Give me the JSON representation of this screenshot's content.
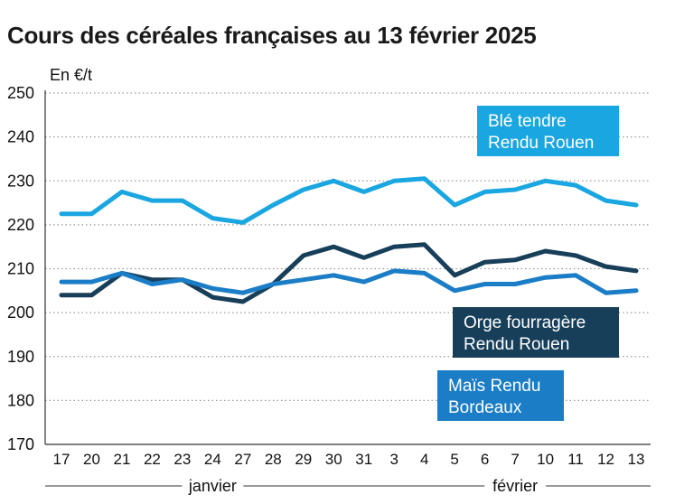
{
  "title": "Cours des céréales françaises au 13 février 2025",
  "chart_data": {
    "type": "line",
    "ylabel": "En €/t",
    "ylim": [
      170,
      250
    ],
    "yticks": [
      170,
      180,
      190,
      200,
      210,
      220,
      230,
      240,
      250
    ],
    "grid": true,
    "categories": [
      "17",
      "20",
      "21",
      "22",
      "23",
      "24",
      "27",
      "28",
      "29",
      "30",
      "31",
      "3",
      "4",
      "5",
      "6",
      "7",
      "10",
      "11",
      "12",
      "13"
    ],
    "months": [
      {
        "label": "janvier",
        "from": 0,
        "to": 10
      },
      {
        "label": "février",
        "from": 11,
        "to": 19
      }
    ],
    "series": [
      {
        "name": "Blé tendre Rendu Rouen",
        "label_lines": [
          "Blé tendre",
          "Rendu Rouen"
        ],
        "color": "#1aa6e0",
        "label_bg": "#1aa6e0",
        "values": [
          222.5,
          222.5,
          227.5,
          225.5,
          225.5,
          221.5,
          220.5,
          224.5,
          228,
          230,
          227.5,
          230,
          230.5,
          224.5,
          227.5,
          228,
          230,
          229,
          225.5,
          224.5
        ]
      },
      {
        "name": "Orge fourragère Rendu Rouen",
        "label_lines": [
          "Orge fourragère",
          "Rendu Rouen"
        ],
        "color": "#173f5a",
        "label_bg": "#173f5a",
        "values": [
          204,
          204,
          209,
          207.5,
          207.5,
          203.5,
          202.5,
          206.5,
          213,
          215,
          212.5,
          215,
          215.5,
          208.5,
          211.5,
          212,
          214,
          213,
          210.5,
          209.5
        ]
      },
      {
        "name": "Maïs Rendu Bordeaux",
        "label_lines": [
          "Maïs Rendu",
          "Bordeaux"
        ],
        "color": "#1b7dc6",
        "label_bg": "#1b7dc6",
        "values": [
          207,
          207,
          209,
          206.5,
          207.5,
          205.5,
          204.5,
          206.5,
          207.5,
          208.5,
          207,
          209.5,
          209,
          205,
          206.5,
          206.5,
          208,
          208.5,
          204.5,
          205
        ]
      }
    ]
  }
}
